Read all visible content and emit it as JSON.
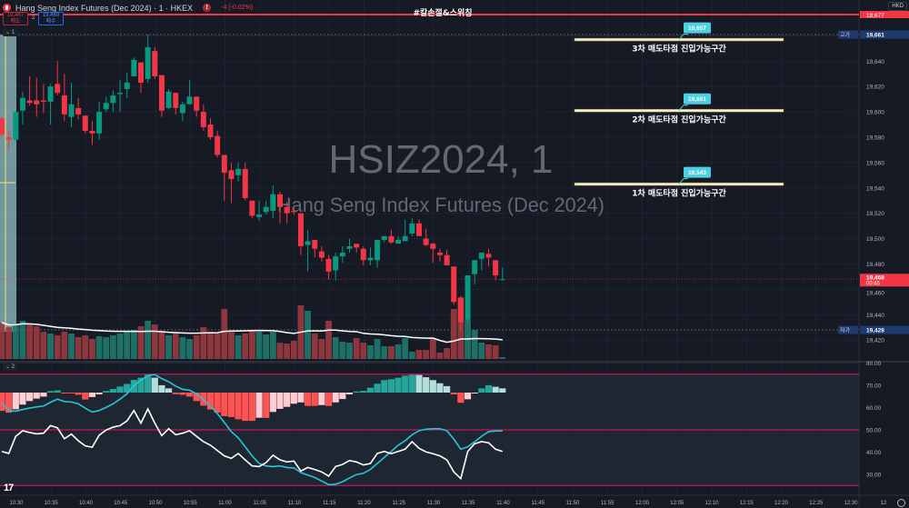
{
  "header": {
    "title": "Hang Seng Index Futures (Dec 2024) · 1 · HKEX",
    "change": "-4 (-0.02%)",
    "sell_price": "19,467",
    "sell_label": "매도",
    "spread": "2",
    "buy_price": "19,469",
    "buy_label": "매수",
    "currency": "HKD",
    "pane1_label": "⌄ 1",
    "pane2_label": "⌄ 2",
    "logo": "17"
  },
  "watermark": {
    "symbol": "HSIZ2024, 1",
    "name": "Hang Seng Index Futures (Dec 2024)"
  },
  "colors": {
    "up": "#089981",
    "down": "#f23645",
    "bg": "#161a25",
    "zone": "#f7f0c6",
    "callout": "#4dd0e1",
    "osc_cyan": "#26c6da",
    "osc_white": "#ffffff",
    "band": "#c2185b"
  },
  "stop_line": {
    "label": "#칼손절&스위칭",
    "price_label": "19,677"
  },
  "zones": [
    {
      "price": 19657,
      "price_label": "19,657",
      "label": "3차 매도타점 진입가능구간"
    },
    {
      "price": 19601,
      "price_label": "19,601",
      "label": "2차 매도타점 진입가능구간"
    },
    {
      "price": 19543,
      "price_label": "19,543",
      "label": "1차 매도타점 진입가능구간"
    }
  ],
  "price_axis": {
    "ticks": [
      "19,640",
      "19,620",
      "19,600",
      "19,580",
      "19,560",
      "19,540",
      "19,520",
      "19,500",
      "19,480",
      "19,460",
      "19,440",
      "19,420"
    ],
    "high": {
      "label": "고가",
      "value": "19,661",
      "price": 19661
    },
    "low": {
      "label": "저가",
      "value": "19,428",
      "price": 19428
    },
    "last": {
      "value": "19,468",
      "countdown": "00:45",
      "price": 19468
    }
  },
  "osc_axis": {
    "ticks": [
      "80.00",
      "70.00",
      "60.00",
      "50.00",
      "40.00",
      "30.00"
    ]
  },
  "time_axis": [
    "10:30",
    "10:35",
    "10:40",
    "10:45",
    "10:50",
    "10:55",
    "11:00",
    "11:05",
    "11:10",
    "11:15",
    "11:20",
    "11:25",
    "11:30",
    "11:35",
    "11:40",
    "11:45",
    "11:50",
    "11:55",
    "12:00",
    "12:05",
    "12:10",
    "12:15",
    "12:20",
    "12:25",
    "12:30",
    "12"
  ],
  "chart_data": {
    "type": "candlestick",
    "interval": "1m",
    "ohlc": [
      [
        19595,
        19596,
        19580,
        19582
      ],
      [
        19580,
        19585,
        19570,
        19578
      ],
      [
        19578,
        19601,
        19577,
        19600
      ],
      [
        19601,
        19616,
        19590,
        19611
      ],
      [
        19609,
        19628,
        19605,
        19607
      ],
      [
        19609,
        19627,
        19596,
        19606
      ],
      [
        19609,
        19622,
        19599,
        19608
      ],
      [
        19608,
        19622,
        19590,
        19620
      ],
      [
        19622,
        19640,
        19613,
        19615
      ],
      [
        19613,
        19630,
        19593,
        19598
      ],
      [
        19596,
        19623,
        19588,
        19606
      ],
      [
        19603,
        19611,
        19594,
        19598
      ],
      [
        19597,
        19597,
        19583,
        19585
      ],
      [
        19585,
        19593,
        19574,
        19583
      ],
      [
        19583,
        19608,
        19578,
        19600
      ],
      [
        19602,
        19612,
        19600,
        19607
      ],
      [
        19607,
        19617,
        19600,
        19613
      ],
      [
        19614,
        19625,
        19600,
        19615
      ],
      [
        19618,
        19631,
        19611,
        19623
      ],
      [
        19628,
        19643,
        19628,
        19641
      ],
      [
        19639,
        19639,
        19615,
        19623
      ],
      [
        19626,
        19661,
        19623,
        19651
      ],
      [
        19648,
        19651,
        19626,
        19628
      ],
      [
        19629,
        19629,
        19596,
        19601
      ],
      [
        19603,
        19618,
        19602,
        19616
      ],
      [
        19615,
        19615,
        19598,
        19603
      ],
      [
        19599,
        19608,
        19593,
        19606
      ],
      [
        19606,
        19625,
        19606,
        19612
      ],
      [
        19612,
        19612,
        19596,
        19601
      ],
      [
        19600,
        19606,
        19585,
        19588
      ],
      [
        19590,
        19595,
        19578,
        19580
      ],
      [
        19581,
        19585,
        19564,
        19566
      ],
      [
        19566,
        19566,
        19530,
        19552
      ],
      [
        19554,
        19560,
        19528,
        19547
      ],
      [
        19550,
        19560,
        19545,
        19555
      ],
      [
        19555,
        19560,
        19530,
        19532
      ],
      [
        19530,
        19530,
        19516,
        19518
      ],
      [
        19517,
        19530,
        19514,
        19519
      ],
      [
        19521,
        19530,
        19519,
        19525
      ],
      [
        19522,
        19542,
        19516,
        19535
      ],
      [
        19535,
        19537,
        19512,
        19525
      ],
      [
        19525,
        19529,
        19512,
        19520
      ],
      [
        19522,
        19524,
        19519,
        19521
      ],
      [
        19520,
        19520,
        19487,
        19494
      ],
      [
        19495,
        19507,
        19474,
        19498
      ],
      [
        19499,
        19499,
        19485,
        19492
      ],
      [
        19490,
        19494,
        19482,
        19485
      ],
      [
        19484,
        19487,
        19468,
        19474
      ],
      [
        19475,
        19489,
        19467,
        19486
      ],
      [
        19486,
        19494,
        19481,
        19489
      ],
      [
        19492,
        19500,
        19489,
        19494
      ],
      [
        19496,
        19496,
        19489,
        19493
      ],
      [
        19492,
        19494,
        19479,
        19483
      ],
      [
        19483,
        19493,
        19479,
        19485
      ],
      [
        19483,
        19499,
        19477,
        19499
      ],
      [
        19499,
        19502,
        19497,
        19502
      ],
      [
        19502,
        19507,
        19496,
        19497
      ],
      [
        19496,
        19502,
        19496,
        19499
      ],
      [
        19498,
        19515,
        19498,
        19502
      ],
      [
        19504,
        19516,
        19502,
        19512
      ],
      [
        19512,
        19515,
        19502,
        19502
      ],
      [
        19500,
        19508,
        19494,
        19495
      ],
      [
        19496,
        19497,
        19481,
        19492
      ],
      [
        19489,
        19492,
        19482,
        19487
      ],
      [
        19487,
        19491,
        19479,
        19479
      ],
      [
        19478,
        19478,
        19448,
        19450
      ],
      [
        19453,
        19455,
        19428,
        19434
      ],
      [
        19436,
        19471,
        19433,
        19471
      ],
      [
        19472,
        19483,
        19464,
        19483
      ],
      [
        19484,
        19489,
        19475,
        19489
      ],
      [
        19488,
        19492,
        19478,
        19485
      ],
      [
        19483,
        19483,
        19467,
        19471
      ],
      [
        19468,
        19477,
        19467,
        19468
      ]
    ],
    "volume_relative": [
      40,
      35,
      38,
      42,
      38,
      36,
      30,
      28,
      26,
      30,
      28,
      24,
      26,
      22,
      25,
      24,
      26,
      28,
      30,
      32,
      36,
      42,
      38,
      30,
      26,
      28,
      24,
      22,
      26,
      35,
      30,
      28,
      55,
      30,
      26,
      28,
      32,
      30,
      27,
      30,
      18,
      17,
      20,
      59,
      53,
      28,
      22,
      42,
      24,
      19,
      18,
      23,
      18,
      15,
      22,
      14,
      14,
      16,
      23,
      8,
      10,
      10,
      22,
      7,
      12,
      55,
      68,
      43,
      32,
      18,
      16,
      15,
      2
    ],
    "osc_histogram": [
      -8.2,
      -9,
      -7.5,
      -5.4,
      -3.8,
      -2.7,
      -1.8,
      0.7,
      1,
      -0.4,
      -0.4,
      -1,
      -3.1,
      -2,
      -0.8,
      0.7,
      1.6,
      2.7,
      3.9,
      5.7,
      6.7,
      8,
      6.7,
      3.3,
      1.9,
      -0.7,
      -1,
      -1.8,
      -3.8,
      -5.9,
      -7.6,
      -9,
      -10.6,
      -11,
      -12,
      -12.7,
      -12.7,
      -11.3,
      -11.4,
      -8.7,
      -7.3,
      -6.4,
      -5,
      -4.4,
      -6,
      -6,
      -5.6,
      -6,
      -4.4,
      -2.9,
      -0.8,
      0.5,
      0.8,
      2.2,
      4,
      5.6,
      6,
      6.7,
      7.6,
      8,
      7.9,
      6.9,
      5.6,
      4.2,
      2.9,
      -0.8,
      -4.6,
      -3,
      -0.3,
      1.9,
      3.3,
      2.6,
      1.9
    ],
    "osc_cyan": [
      62.2,
      58.6,
      58.4,
      59.1,
      59.8,
      60.3,
      60.7,
      62.4,
      63.8,
      62.7,
      62.5,
      61.7,
      59.7,
      58,
      58.7,
      60.1,
      61.7,
      63.8,
      66.2,
      69.9,
      72.3,
      74.4,
      74.8,
      73,
      71.6,
      69.6,
      68.2,
      67.8,
      66.2,
      63.5,
      60.7,
      57.3,
      53.3,
      49.2,
      46.4,
      42.4,
      38.3,
      34.9,
      33.8,
      33.5,
      33.8,
      33.1,
      32.9,
      30.8,
      29.7,
      28.6,
      27,
      25.4,
      25.6,
      26.7,
      28.4,
      29.9,
      30.5,
      32.2,
      34.9,
      37.6,
      40.3,
      43.1,
      45.1,
      47.8,
      49.6,
      50.3,
      50.5,
      50.5,
      49.6,
      45.8,
      41.3,
      42.4,
      44.7,
      47.1,
      49.2,
      49.5,
      49.5
    ],
    "osc_white": [
      40.3,
      39.4,
      47.1,
      49.6,
      48.8,
      48.2,
      48.5,
      51.9,
      50.9,
      46,
      48.1,
      45.1,
      42.8,
      42.2,
      47.6,
      49.9,
      51.2,
      51.9,
      54,
      58.7,
      53,
      59.4,
      53,
      47.4,
      50.5,
      47.8,
      48.5,
      49.6,
      47.1,
      44.7,
      43.1,
      40.7,
      38.3,
      37.2,
      39.4,
      36.5,
      33.8,
      33.5,
      35.3,
      38.6,
      36.5,
      35.6,
      36,
      31.5,
      33.1,
      32.2,
      31.1,
      29.2,
      33.5,
      34.5,
      36.2,
      35.6,
      34.2,
      34.9,
      39.4,
      40.3,
      39.3,
      40.3,
      41.3,
      44.7,
      41.7,
      40.1,
      39.3,
      38.3,
      36.5,
      31.1,
      28.1,
      40.3,
      43.8,
      44.7,
      44.2,
      41.3,
      40.3
    ],
    "osc_levels": [
      75,
      50,
      25
    ],
    "price_range": [
      19415,
      19690
    ],
    "osc_range": [
      24,
      82
    ]
  }
}
